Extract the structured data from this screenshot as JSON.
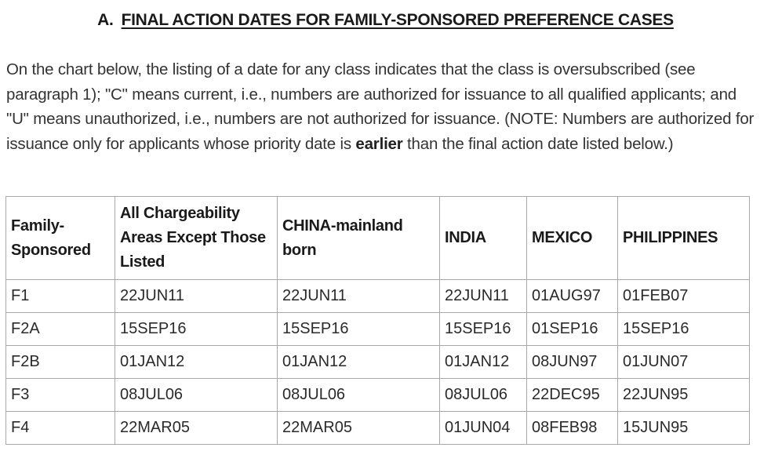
{
  "heading": {
    "letter": "A.",
    "title": "FINAL ACTION DATES FOR FAMILY-SPONSORED PREFERENCE CASES"
  },
  "intro": {
    "part1": "On the chart below, the listing of a date for any class indicates that the class is oversubscribed (see paragraph 1); \"C\" means current, i.e., numbers are authorized for issuance to all qualified applicants; and \"U\" means unauthorized, i.e., numbers are not authorized for issuance. (NOTE: Numbers are authorized for issuance only for applicants whose priority date is ",
    "emphasis": "earlier",
    "part2": " than the final action date listed below.)"
  },
  "table": {
    "headers": [
      "Family-Sponsored",
      "All Chargeability Areas Except Those Listed",
      "CHINA-mainland born",
      "INDIA",
      "MEXICO",
      "PHILIPPINES"
    ],
    "rows": [
      [
        "F1",
        "22JUN11",
        "22JUN11",
        "22JUN11",
        "01AUG97",
        "01FEB07"
      ],
      [
        "F2A",
        "15SEP16",
        "15SEP16",
        "15SEP16",
        "01SEP16",
        "15SEP16"
      ],
      [
        "F2B",
        "01JAN12",
        "01JAN12",
        "01JAN12",
        "08JUN97",
        "01JUN07"
      ],
      [
        "F3",
        "08JUL06",
        "08JUL06",
        "08JUL06",
        "22DEC95",
        "22JUN95"
      ],
      [
        "F4",
        "22MAR05",
        "22MAR05",
        "01JUN04",
        "08FEB98",
        "15JUN95"
      ]
    ]
  }
}
